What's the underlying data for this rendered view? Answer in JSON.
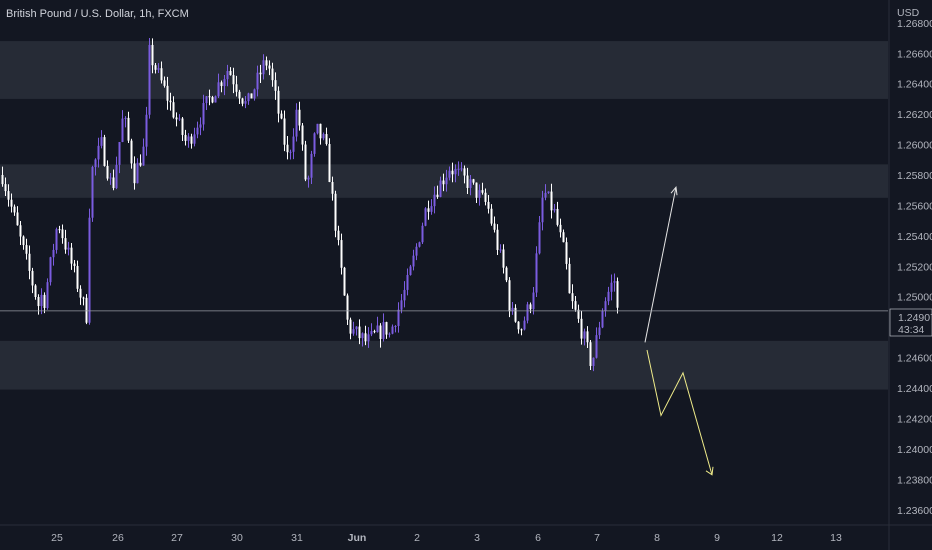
{
  "header": {
    "symbol_title": "British Pound / U.S. Dollar, 1h, FXCM"
  },
  "price_scale": {
    "currency": "USD",
    "ticks": [
      "1.26800",
      "1.26600",
      "1.26400",
      "1.26200",
      "1.26000",
      "1.25800",
      "1.25600",
      "1.25400",
      "1.25200",
      "1.25000",
      "1.24800",
      "1.24600",
      "1.24400",
      "1.24200",
      "1.24000",
      "1.23800",
      "1.23600"
    ],
    "last_price": "1.24907",
    "countdown": "43:34"
  },
  "time_scale": {
    "labels": [
      "25",
      "26",
      "27",
      "30",
      "31",
      "Jun",
      "2",
      "3",
      "6",
      "7",
      "8",
      "9",
      "12",
      "13"
    ]
  },
  "colors": {
    "background": "#131722",
    "up_candle": "#7b5ce0",
    "down_candle": "#ffffff",
    "zone": "#262b36",
    "grid": "#1e222d",
    "up_arrow": "#e6e6e6",
    "down_arrow": "#f0ec8a",
    "price_line": "#9598a1"
  },
  "chart_data": {
    "type": "candlestick",
    "title": "British Pound / U.S. Dollar, 1h, FXCM",
    "ylim": [
      1.235,
      1.2695
    ],
    "y_unit": "USD",
    "grid": false,
    "zones": [
      {
        "from": 1.263,
        "to": 1.2668
      },
      {
        "from": 1.2565,
        "to": 1.2587
      },
      {
        "from": 1.2439,
        "to": 1.2471
      }
    ],
    "price_path": [
      {
        "x": "24 May",
        "y": 1.258
      },
      {
        "x": "24 May",
        "y": 1.249
      },
      {
        "x": "25 May",
        "y": 1.253
      },
      {
        "x": "25 May",
        "y": 1.2495
      },
      {
        "x": "25 May",
        "y": 1.255
      },
      {
        "x": "25 May",
        "y": 1.252
      },
      {
        "x": "25 May",
        "y": 1.2488
      },
      {
        "x": "26 May",
        "y": 1.258
      },
      {
        "x": "26 May",
        "y": 1.26
      },
      {
        "x": "26 May",
        "y": 1.257
      },
      {
        "x": "26 May",
        "y": 1.262
      },
      {
        "x": "26 May",
        "y": 1.258
      },
      {
        "x": "26 May",
        "y": 1.26
      },
      {
        "x": "27 May",
        "y": 1.266
      },
      {
        "x": "27 May",
        "y": 1.263
      },
      {
        "x": "27 May",
        "y": 1.26
      },
      {
        "x": "27 May",
        "y": 1.2625
      },
      {
        "x": "30 May",
        "y": 1.263
      },
      {
        "x": "30 May",
        "y": 1.265
      },
      {
        "x": "30 May",
        "y": 1.2625
      },
      {
        "x": "30 May",
        "y": 1.2655
      },
      {
        "x": "31 May",
        "y": 1.265
      },
      {
        "x": "31 May",
        "y": 1.262
      },
      {
        "x": "31 May",
        "y": 1.259
      },
      {
        "x": "31 May",
        "y": 1.2625
      },
      {
        "x": "31 May",
        "y": 1.257
      },
      {
        "x": "31 May",
        "y": 1.261
      },
      {
        "x": "31 May",
        "y": 1.26
      },
      {
        "x": "1 Jun",
        "y": 1.258
      },
      {
        "x": "1 Jun",
        "y": 1.248
      },
      {
        "x": "1 Jun",
        "y": 1.247
      },
      {
        "x": "1 Jun",
        "y": 1.248
      },
      {
        "x": "2 Jun",
        "y": 1.2475
      },
      {
        "x": "2 Jun",
        "y": 1.251
      },
      {
        "x": "2 Jun",
        "y": 1.256
      },
      {
        "x": "2 Jun",
        "y": 1.258
      },
      {
        "x": "3 Jun",
        "y": 1.2585
      },
      {
        "x": "3 Jun",
        "y": 1.2575
      },
      {
        "x": "3 Jun",
        "y": 1.256
      },
      {
        "x": "3 Jun",
        "y": 1.251
      },
      {
        "x": "6 Jun",
        "y": 1.249
      },
      {
        "x": "6 Jun",
        "y": 1.248
      },
      {
        "x": "6 Jun",
        "y": 1.25
      },
      {
        "x": "6 Jun",
        "y": 1.257
      },
      {
        "x": "6 Jun",
        "y": 1.2555
      },
      {
        "x": "6 Jun",
        "y": 1.2525
      },
      {
        "x": "7 Jun",
        "y": 1.25
      },
      {
        "x": "7 Jun",
        "y": 1.248
      },
      {
        "x": "7 Jun",
        "y": 1.2455
      },
      {
        "x": "7 Jun",
        "y": 1.2495
      },
      {
        "x": "7 Jun",
        "y": 1.2512
      },
      {
        "x": "7 Jun",
        "y": 1.2491
      }
    ],
    "last_price": 1.24907,
    "scenario_up": [
      {
        "x": "8 Jun",
        "y": 1.247
      },
      {
        "x": "8 Jun",
        "y": 1.2572
      }
    ],
    "scenario_down": [
      {
        "x": "8 Jun",
        "y": 1.2465
      },
      {
        "x": "8 Jun",
        "y": 1.2422
      },
      {
        "x": "9 Jun",
        "y": 1.245
      },
      {
        "x": "9 Jun",
        "y": 1.2383
      }
    ]
  }
}
